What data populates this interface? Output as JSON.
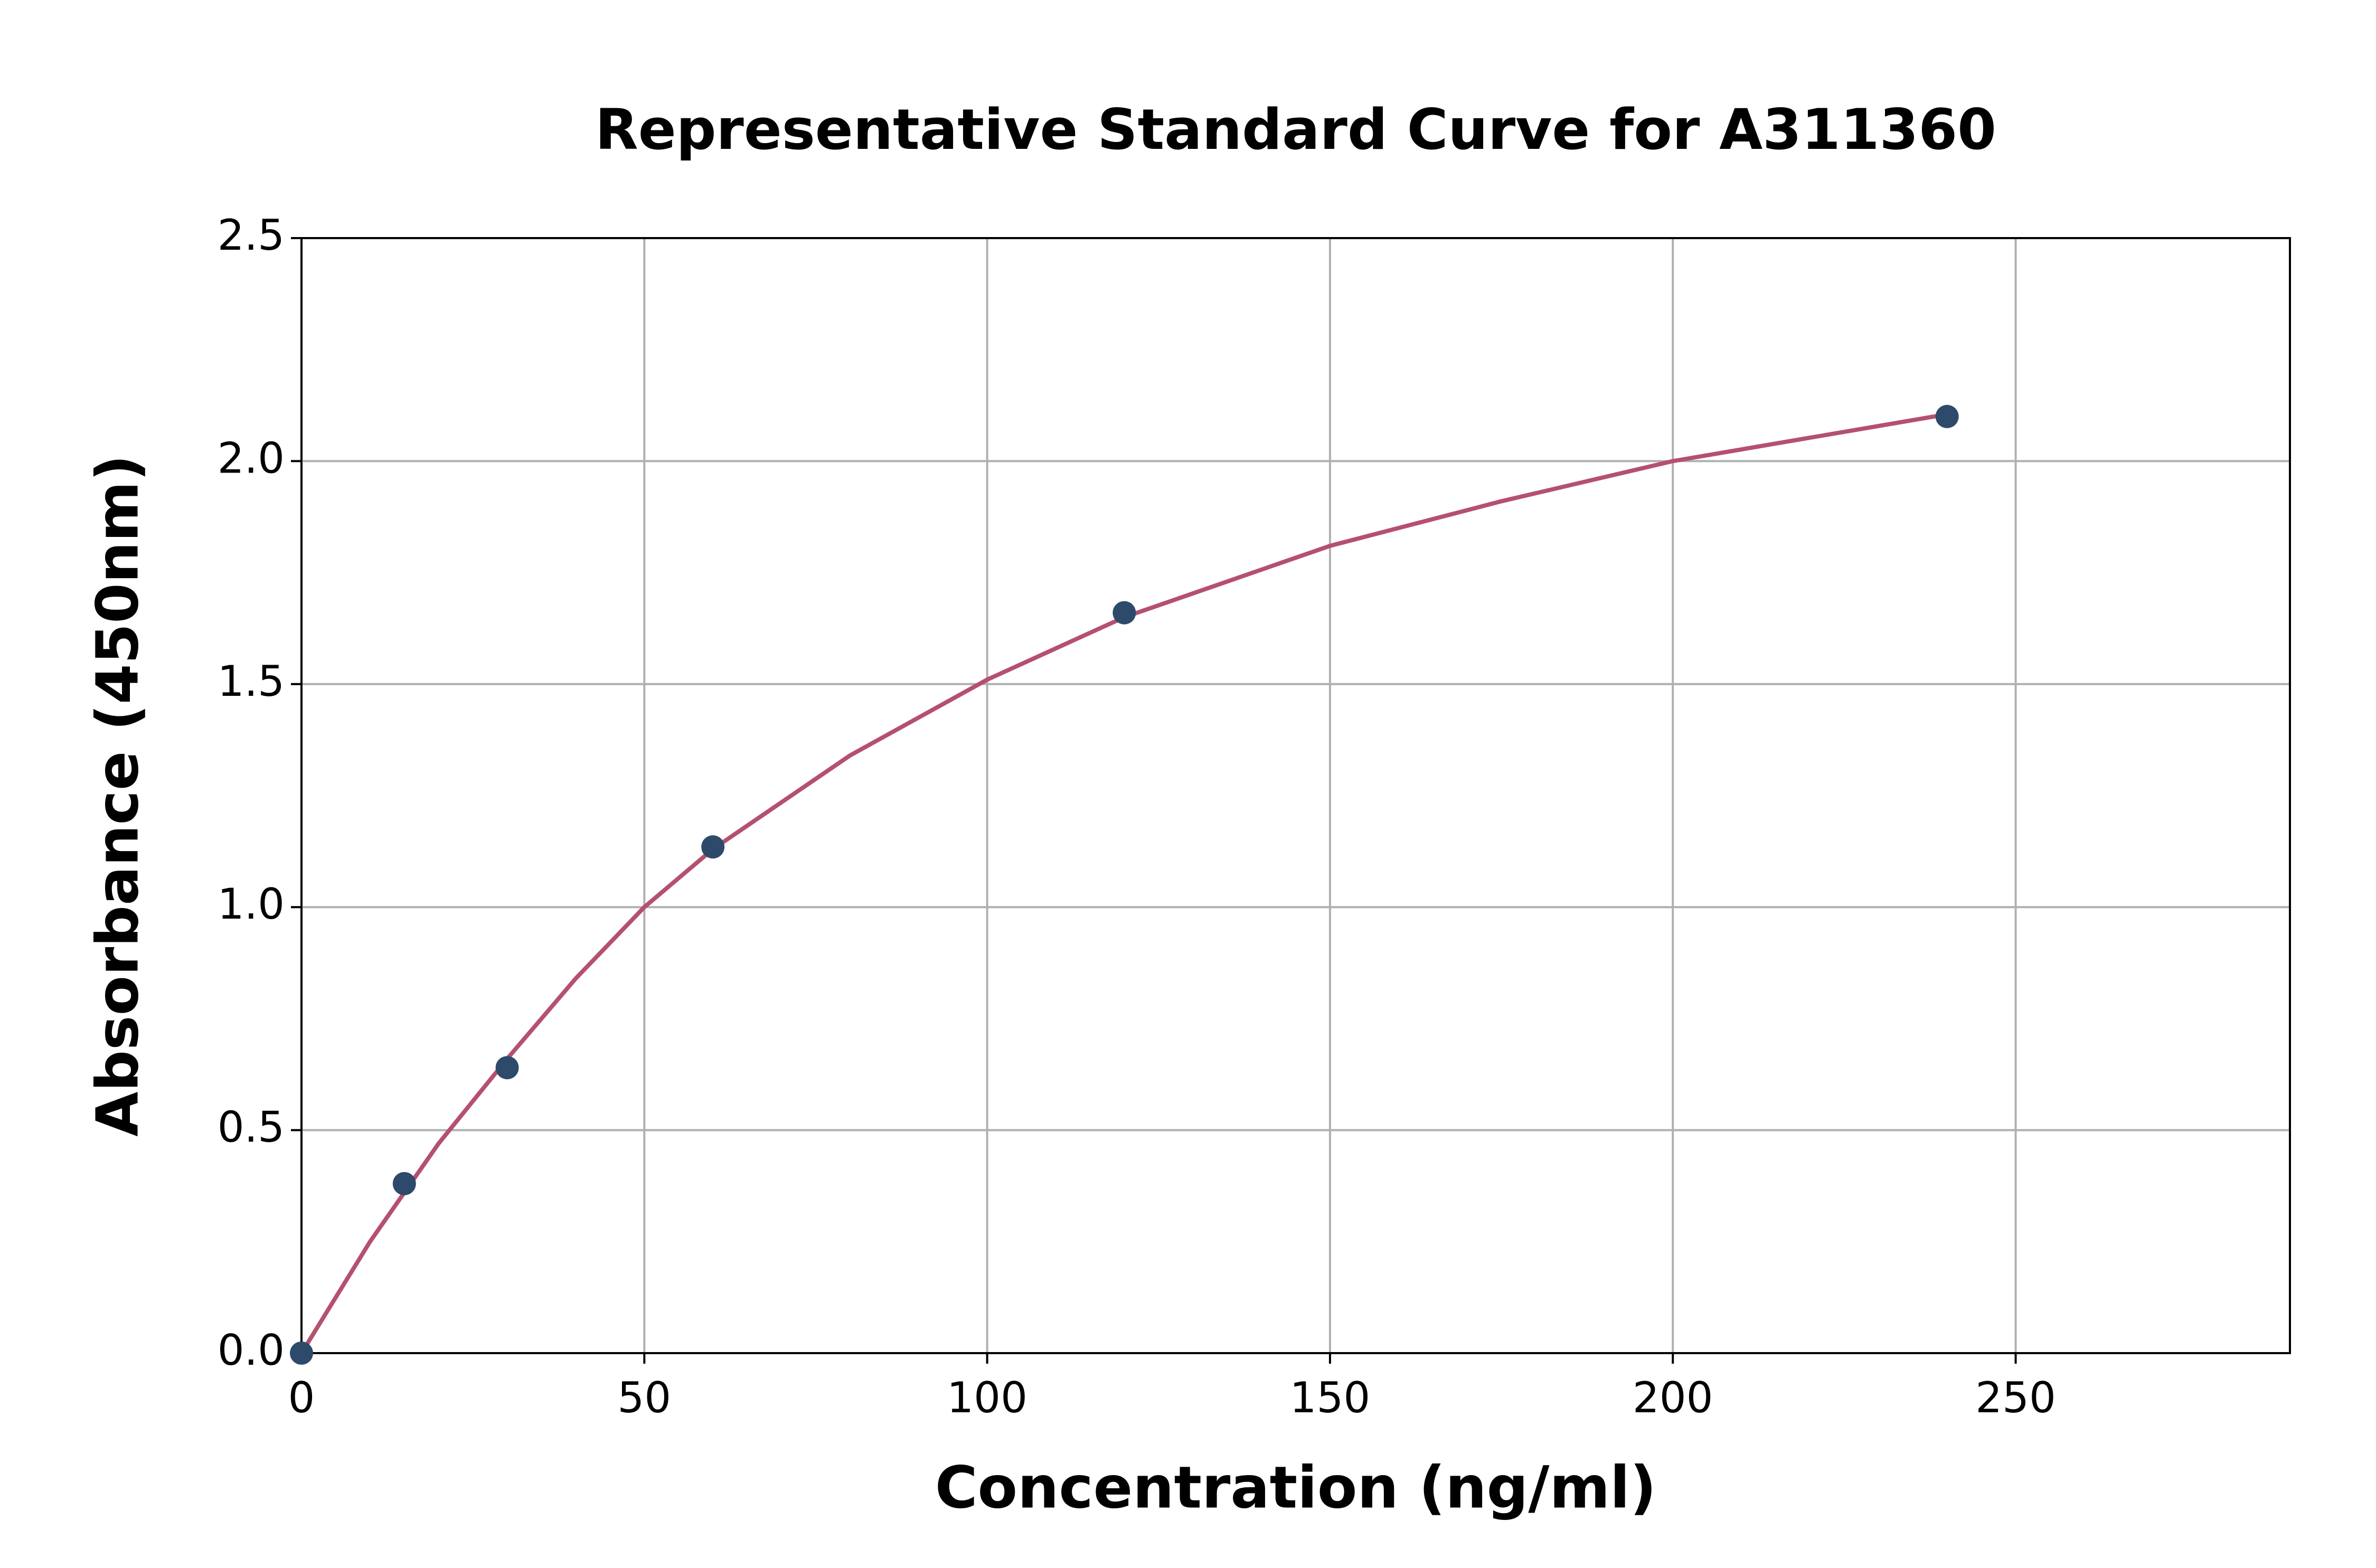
{
  "chart_data": {
    "type": "scatter",
    "title": "Representative Standard Curve for A311360",
    "x_label": "Concentration (ng/ml)",
    "y_label": "Absorbance (450nm)",
    "x": [
      0,
      15,
      30,
      60,
      120,
      240
    ],
    "values": [
      0,
      0.38,
      0.64,
      1.135,
      1.66,
      2.1
    ],
    "color": "#2d4a6b",
    "fit": {
      "x": [
        0,
        10,
        15,
        20,
        30,
        40,
        50,
        60,
        80,
        100,
        120,
        150,
        175,
        200,
        240
      ],
      "values": [
        0,
        0.25,
        0.36,
        0.47,
        0.66,
        0.84,
        1.0,
        1.13,
        1.34,
        1.51,
        1.65,
        1.81,
        1.91,
        2.0,
        2.105
      ],
      "color": "#b5506f"
    },
    "xlim": [
      0,
      290
    ],
    "ylim": [
      0,
      2.5
    ],
    "xticks": [
      0,
      50,
      100,
      150,
      200,
      250
    ],
    "yticks": [
      {
        "value": 0,
        "label": "0.0"
      },
      0.5,
      {
        "value": 1,
        "label": "1.0"
      },
      1.5,
      {
        "value": 2,
        "label": "2.0"
      },
      2.5
    ],
    "grid": true
  }
}
